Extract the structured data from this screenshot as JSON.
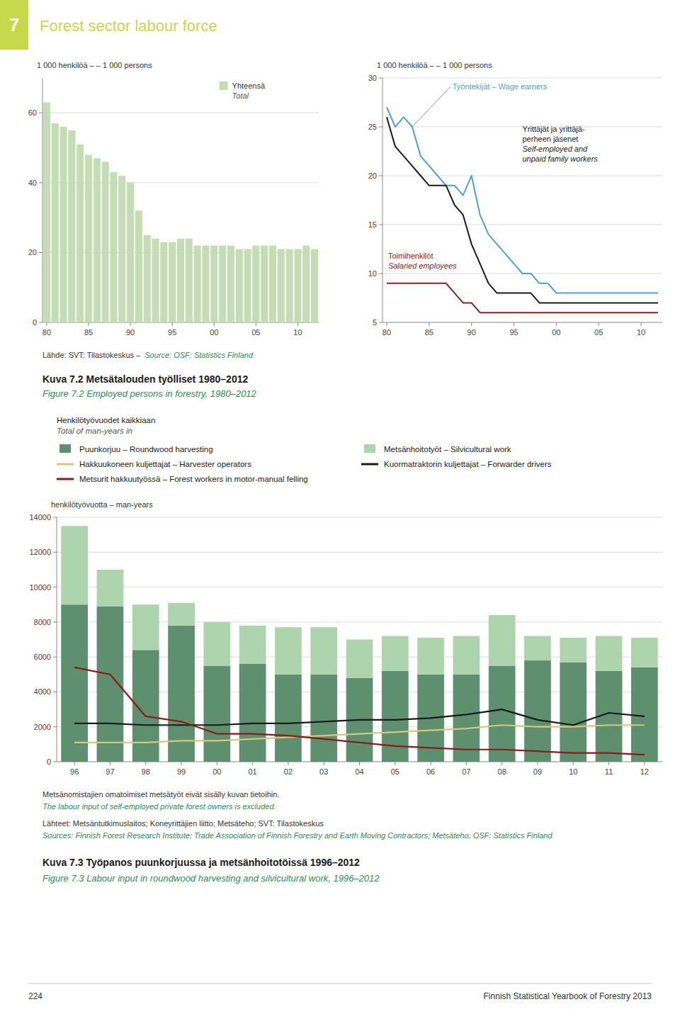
{
  "page": {
    "tab": "7",
    "header": "Forest sector labour force",
    "header_color": "#c5d94a",
    "english_color": "#2e8b57",
    "footer_left": "224",
    "footer_right": "Finnish Statistical Yearbook of Forestry 2013"
  },
  "chart_data": [
    {
      "type": "bar",
      "title": "Kuva 7.2   Metsätalouden työlliset 1980–2012",
      "subtitle": "Figure 7.2   Employed persons in forestry, 1980–2012",
      "ylabel": "1 000 henkilöä – – 1 000 persons",
      "source": [
        "Lähde: SVT: Tilastokeskus –",
        "Source: OSF: Statistics Finland"
      ],
      "categories": [
        "80",
        null,
        null,
        null,
        null,
        "85",
        null,
        null,
        null,
        null,
        "90",
        null,
        null,
        null,
        null,
        "95",
        null,
        null,
        null,
        null,
        "00",
        null,
        null,
        null,
        null,
        "05",
        null,
        null,
        null,
        null,
        "10",
        null,
        null
      ],
      "series": [
        {
          "name": "Yhteensä\nTotal",
          "color": "#c5ddb5",
          "values": [
            63,
            57,
            56,
            55,
            51,
            48,
            47,
            46,
            43,
            42,
            40,
            32,
            25,
            24,
            23,
            23,
            24,
            24,
            22,
            22,
            22,
            22,
            22,
            21,
            21,
            22,
            22,
            22,
            21,
            21,
            21,
            22,
            21
          ]
        }
      ],
      "ylim": [
        0,
        70
      ],
      "yticks": [
        0,
        20,
        40,
        60
      ],
      "grid": true
    },
    {
      "type": "line",
      "ylabel": "1 000 henkilöä – – 1 000 persons",
      "categories": [
        "80",
        null,
        null,
        null,
        null,
        "85",
        null,
        null,
        null,
        null,
        "90",
        null,
        null,
        null,
        null,
        "95",
        null,
        null,
        null,
        null,
        "00",
        null,
        null,
        null,
        null,
        "05",
        null,
        null,
        null,
        null,
        "10",
        null,
        null
      ],
      "series": [
        {
          "name": "Työntekijät – Wage earners",
          "color": "#4f9fd4",
          "values": [
            27,
            25,
            26,
            25,
            22,
            21,
            20,
            19,
            19,
            18,
            20,
            16,
            14,
            13,
            12,
            11,
            10,
            10,
            9,
            9,
            8,
            8,
            8,
            8,
            8,
            8,
            8,
            8,
            8,
            8,
            8,
            8,
            8
          ]
        },
        {
          "name": "Yrittäjät ja yrittäjä-\nperheen jäsenet\nSelf-employed and\nunpaid family workers",
          "color": "#1a1a1a",
          "values": [
            26,
            23,
            22,
            21,
            20,
            19,
            19,
            19,
            17,
            16,
            13,
            11,
            9,
            8,
            8,
            8,
            8,
            8,
            7,
            7,
            7,
            7,
            7,
            7,
            7,
            7,
            7,
            7,
            7,
            7,
            7,
            7,
            7
          ]
        },
        {
          "name": "Toimihenkilöt\nSalaried employees",
          "color": "#8b2020",
          "values": [
            9,
            9,
            9,
            9,
            9,
            9,
            9,
            9,
            8,
            7,
            7,
            6,
            6,
            6,
            6,
            6,
            6,
            6,
            6,
            6,
            6,
            6,
            6,
            6,
            6,
            6,
            6,
            6,
            6,
            6,
            6,
            6,
            6
          ]
        }
      ],
      "ylim": [
        5,
        30
      ],
      "yticks": [
        5,
        10,
        15,
        20,
        25,
        30
      ],
      "grid": true
    },
    {
      "type": "bar",
      "stacked": true,
      "title": "Kuva 7.3   Työpanos puunkorjuussa ja metsänhoitotöissä 1996–2012",
      "subtitle": "Figure 7.3   Labour input in roundwood harvesting and silvicultural work, 1996–2012",
      "ylabel": "henkilötyövuotta – man-years",
      "annotations": [
        "Henkilötyövuodet kaikkiaan\nTotal of man-years in"
      ],
      "note": [
        "Metsänomistajien omatoimiset metsätyöt eivät sisälly kuvan tietoihin.",
        "The labour input of self-employed private forest owners is excluded."
      ],
      "source": [
        "Lähteet: Metsäntutkimuslaitos; Koneyrittäjien liitto; Metsäteho; SVT: Tilastokeskus",
        "Sources: Finnish Forest Research Institute; Trade Association of Finnish Forestry and Earth Moving Contractors; Metsäteho; OSF: Statistics Finland"
      ],
      "categories": [
        "96",
        "97",
        "98",
        "99",
        "00",
        "01",
        "02",
        "03",
        "04",
        "05",
        "06",
        "07",
        "08",
        "09",
        "10",
        "11",
        "12"
      ],
      "series": [
        {
          "name": "Puunkorjuu – Roundwood harvesting",
          "type": "bar",
          "color": "#5e9070",
          "values": [
            9000,
            8900,
            6400,
            7800,
            5500,
            5600,
            5000,
            5000,
            4800,
            5200,
            5000,
            5000,
            5500,
            5800,
            5700,
            5200,
            5400
          ]
        },
        {
          "name": "Metsänhoitotyöt – Silvicultural work",
          "type": "bar",
          "color": "#aed4ae",
          "values": [
            4500,
            2100,
            2600,
            1300,
            2500,
            2200,
            2700,
            2700,
            2200,
            2000,
            2100,
            2200,
            2900,
            1400,
            1400,
            2000,
            1700
          ]
        },
        {
          "name": "Hakkuukoneen kuljettajat – Harvester operators",
          "type": "line",
          "color": "#d4c87a",
          "values": [
            1100,
            1100,
            1100,
            1200,
            1200,
            1300,
            1400,
            1500,
            1600,
            1700,
            1800,
            1900,
            2100,
            2000,
            2000,
            2100,
            2100
          ]
        },
        {
          "name": "Kuormatraktorin kuljettajat – Forwarder drivers",
          "type": "line",
          "color": "#1a1a1a",
          "values": [
            2200,
            2200,
            2100,
            2100,
            2100,
            2200,
            2200,
            2300,
            2400,
            2400,
            2500,
            2700,
            3000,
            2400,
            2100,
            2800,
            2600
          ]
        },
        {
          "name": "Metsurit hakkuutyössä – Forest workers in motor-manual felling",
          "type": "line",
          "color": "#8b1a1a",
          "values": [
            5400,
            5000,
            2600,
            2300,
            1600,
            1600,
            1500,
            1300,
            1100,
            900,
            800,
            700,
            700,
            600,
            500,
            500,
            400
          ]
        }
      ],
      "ylim": [
        0,
        14000
      ],
      "yticks": [
        0,
        2000,
        4000,
        6000,
        8000,
        10000,
        12000,
        14000
      ],
      "grid": true
    }
  ]
}
